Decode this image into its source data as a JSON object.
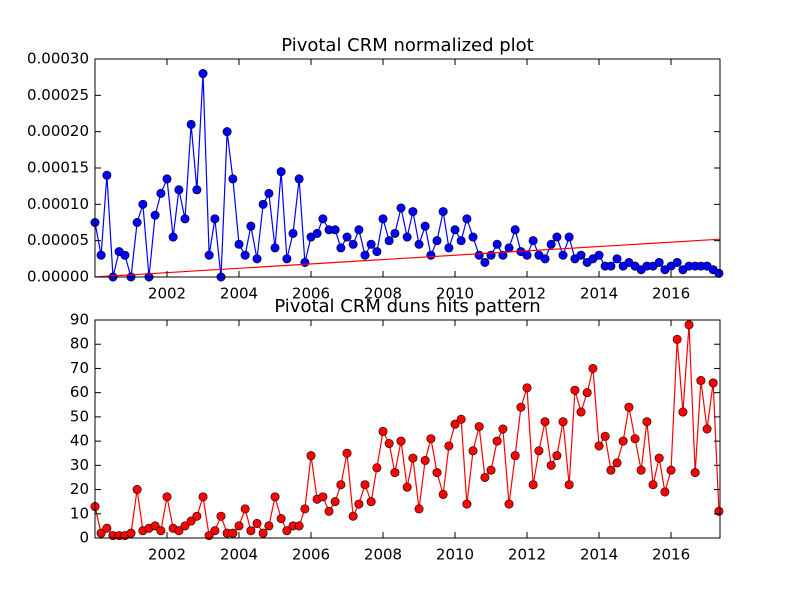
{
  "chart_data": [
    {
      "type": "line",
      "title": "Pivotal CRM normalized plot",
      "x": [
        2000.0,
        2000.17,
        2000.33,
        2000.5,
        2000.67,
        2000.83,
        2001.0,
        2001.17,
        2001.33,
        2001.5,
        2001.67,
        2001.83,
        2002.0,
        2002.17,
        2002.33,
        2002.5,
        2002.67,
        2002.83,
        2003.0,
        2003.17,
        2003.33,
        2003.5,
        2003.67,
        2003.83,
        2004.0,
        2004.17,
        2004.33,
        2004.5,
        2004.67,
        2004.83,
        2005.0,
        2005.17,
        2005.33,
        2005.5,
        2005.67,
        2005.83,
        2006.0,
        2006.17,
        2006.33,
        2006.5,
        2006.67,
        2006.83,
        2007.0,
        2007.17,
        2007.33,
        2007.5,
        2007.67,
        2007.83,
        2008.0,
        2008.17,
        2008.33,
        2008.5,
        2008.67,
        2008.83,
        2009.0,
        2009.17,
        2009.33,
        2009.5,
        2009.67,
        2009.83,
        2010.0,
        2010.17,
        2010.33,
        2010.5,
        2010.67,
        2010.83,
        2011.0,
        2011.17,
        2011.33,
        2011.5,
        2011.67,
        2011.83,
        2012.0,
        2012.17,
        2012.33,
        2012.5,
        2012.67,
        2012.83,
        2013.0,
        2013.17,
        2013.33,
        2013.5,
        2013.67,
        2013.83,
        2014.0,
        2014.17,
        2014.33,
        2014.5,
        2014.67,
        2014.83,
        2015.0,
        2015.17,
        2015.33,
        2015.5,
        2015.67,
        2015.83,
        2016.0,
        2016.17,
        2016.33,
        2016.5,
        2016.67,
        2016.83,
        2017.0,
        2017.17,
        2017.33
      ],
      "series": [
        {
          "color": "#0000ff",
          "marker": true,
          "values": [
            7.5e-05,
            3e-05,
            0.00014,
            0,
            3.5e-05,
            3e-05,
            0,
            7.5e-05,
            0.0001,
            0,
            8.5e-05,
            0.000115,
            0.000135,
            5.5e-05,
            0.00012,
            8e-05,
            0.00021,
            0.00012,
            0.00028,
            3e-05,
            8e-05,
            0,
            0.0002,
            0.000135,
            4.5e-05,
            3e-05,
            7e-05,
            2.5e-05,
            0.0001,
            0.000115,
            4e-05,
            0.000145,
            2.5e-05,
            6e-05,
            0.000135,
            2e-05,
            5.5e-05,
            6e-05,
            8e-05,
            6.5e-05,
            6.5e-05,
            4e-05,
            5.5e-05,
            4.5e-05,
            6.5e-05,
            3e-05,
            4.5e-05,
            3.5e-05,
            8e-05,
            5e-05,
            6e-05,
            9.5e-05,
            5.5e-05,
            9e-05,
            4.5e-05,
            7e-05,
            3e-05,
            5e-05,
            9e-05,
            4e-05,
            6.5e-05,
            5e-05,
            8e-05,
            5.5e-05,
            3e-05,
            2e-05,
            3e-05,
            4.5e-05,
            3e-05,
            4e-05,
            6.5e-05,
            3.5e-05,
            3e-05,
            5e-05,
            3e-05,
            2.5e-05,
            4.5e-05,
            5.5e-05,
            3e-05,
            5.5e-05,
            2.5e-05,
            3e-05,
            2e-05,
            2.5e-05,
            3e-05,
            1.5e-05,
            1.5e-05,
            2.5e-05,
            1.5e-05,
            2e-05,
            1.5e-05,
            1e-05,
            1.5e-05,
            1.5e-05,
            2e-05,
            1e-05,
            1.5e-05,
            2e-05,
            1e-05,
            1.5e-05,
            1.5e-05,
            1.5e-05,
            1.5e-05,
            1e-05,
            5e-06
          ]
        },
        {
          "color": "#ff0000",
          "marker": false,
          "x": [
            2000.0,
            2017.36
          ],
          "values": [
            0,
            5.2e-05
          ]
        }
      ],
      "xlim": [
        2000.0,
        2017.36
      ],
      "ylim": [
        0,
        0.0003
      ],
      "xticks": [
        2002,
        2004,
        2006,
        2008,
        2010,
        2012,
        2014,
        2016
      ],
      "yticks": [
        {
          "value": 0,
          "label": "0.00000"
        },
        {
          "value": 5e-05,
          "label": "0.00005"
        },
        {
          "value": 0.0001,
          "label": "0.00010"
        },
        {
          "value": 0.00015,
          "label": "0.00015"
        },
        {
          "value": 0.0002,
          "label": "0.00020"
        },
        {
          "value": 0.00025,
          "label": "0.00025"
        },
        {
          "value": 0.0003,
          "label": "0.00030"
        }
      ]
    },
    {
      "type": "line",
      "title": "Pivotal CRM duns hits pattern",
      "x": [
        2000.0,
        2000.17,
        2000.33,
        2000.5,
        2000.67,
        2000.83,
        2001.0,
        2001.17,
        2001.33,
        2001.5,
        2001.67,
        2001.83,
        2002.0,
        2002.17,
        2002.33,
        2002.5,
        2002.67,
        2002.83,
        2003.0,
        2003.17,
        2003.33,
        2003.5,
        2003.67,
        2003.83,
        2004.0,
        2004.17,
        2004.33,
        2004.5,
        2004.67,
        2004.83,
        2005.0,
        2005.17,
        2005.33,
        2005.5,
        2005.67,
        2005.83,
        2006.0,
        2006.17,
        2006.33,
        2006.5,
        2006.67,
        2006.83,
        2007.0,
        2007.17,
        2007.33,
        2007.5,
        2007.67,
        2007.83,
        2008.0,
        2008.17,
        2008.33,
        2008.5,
        2008.67,
        2008.83,
        2009.0,
        2009.17,
        2009.33,
        2009.5,
        2009.67,
        2009.83,
        2010.0,
        2010.17,
        2010.33,
        2010.5,
        2010.67,
        2010.83,
        2011.0,
        2011.17,
        2011.33,
        2011.5,
        2011.67,
        2011.83,
        2012.0,
        2012.17,
        2012.33,
        2012.5,
        2012.67,
        2012.83,
        2013.0,
        2013.17,
        2013.33,
        2013.5,
        2013.67,
        2013.83,
        2014.0,
        2014.17,
        2014.33,
        2014.5,
        2014.67,
        2014.83,
        2015.0,
        2015.17,
        2015.33,
        2015.5,
        2015.67,
        2015.83,
        2016.0,
        2016.17,
        2016.33,
        2016.5,
        2016.67,
        2016.83,
        2017.0,
        2017.17,
        2017.33
      ],
      "series": [
        {
          "color": "#ff0000",
          "marker": true,
          "values": [
            13,
            2,
            4,
            1,
            1,
            1,
            2,
            20,
            3,
            4,
            5,
            3,
            17,
            4,
            3,
            5,
            7,
            9,
            17,
            1,
            3,
            9,
            2,
            2,
            5,
            12,
            3,
            6,
            2,
            5,
            17,
            8,
            3,
            5,
            5,
            12,
            34,
            16,
            17,
            11,
            15,
            22,
            35,
            9,
            14,
            22,
            15,
            29,
            44,
            39,
            27,
            40,
            21,
            33,
            12,
            32,
            41,
            27,
            18,
            38,
            47,
            49,
            14,
            36,
            46,
            25,
            28,
            40,
            45,
            14,
            34,
            54,
            62,
            22,
            36,
            48,
            30,
            34,
            48,
            22,
            61,
            52,
            60,
            70,
            38,
            42,
            28,
            31,
            40,
            54,
            41,
            28,
            48,
            22,
            33,
            19,
            28,
            82,
            52,
            88,
            27,
            65,
            45,
            64,
            11
          ]
        }
      ],
      "xlim": [
        2000.0,
        2017.36
      ],
      "ylim": [
        0,
        90
      ],
      "xticks": [
        2002,
        2004,
        2006,
        2008,
        2010,
        2012,
        2014,
        2016
      ],
      "yticks": [
        0,
        10,
        20,
        30,
        40,
        50,
        60,
        70,
        80,
        90
      ]
    }
  ]
}
